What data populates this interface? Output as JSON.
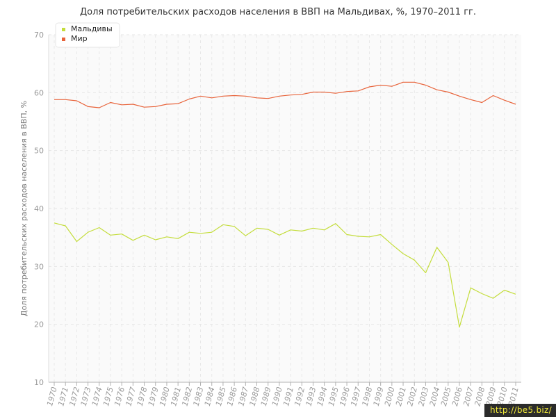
{
  "chart_data": {
    "type": "line",
    "title": "Доля потребительских расходов населения в ВВП на Мальдивах, %, 1970–2011 гг.",
    "xlabel": "",
    "ylabel": "Доля потребительских расходов населения в ВВП, %",
    "ylim": [
      10,
      70
    ],
    "yticks": [
      10,
      20,
      30,
      40,
      50,
      60,
      70
    ],
    "x": [
      1970,
      1971,
      1972,
      1973,
      1974,
      1975,
      1976,
      1977,
      1978,
      1979,
      1980,
      1981,
      1982,
      1983,
      1984,
      1985,
      1986,
      1987,
      1988,
      1989,
      1990,
      1991,
      1992,
      1993,
      1994,
      1995,
      1996,
      1997,
      1998,
      1999,
      2000,
      2001,
      2002,
      2003,
      2004,
      2005,
      2006,
      2007,
      2008,
      2009,
      2010,
      2011
    ],
    "grid": true,
    "legend_position": "top-left",
    "series": [
      {
        "name": "Мальдивы",
        "color": "#c4dd3c",
        "values": [
          37.5,
          37.0,
          34.3,
          35.9,
          36.7,
          35.4,
          35.6,
          34.5,
          35.4,
          34.6,
          35.1,
          34.8,
          35.9,
          35.7,
          35.9,
          37.2,
          36.9,
          35.3,
          36.6,
          36.4,
          35.4,
          36.3,
          36.1,
          36.6,
          36.3,
          37.4,
          35.5,
          35.2,
          35.1,
          35.5,
          33.8,
          32.2,
          31.1,
          28.9,
          33.3,
          30.7,
          19.5,
          26.3,
          25.3,
          24.5,
          25.9,
          25.2
        ]
      },
      {
        "name": "Мир",
        "color": "#e8633a",
        "values": [
          58.8,
          58.8,
          58.6,
          57.6,
          57.4,
          58.3,
          57.9,
          58.0,
          57.5,
          57.6,
          58.0,
          58.1,
          58.9,
          59.4,
          59.1,
          59.4,
          59.5,
          59.4,
          59.1,
          59.0,
          59.4,
          59.6,
          59.7,
          60.1,
          60.1,
          59.9,
          60.2,
          60.3,
          61.0,
          61.3,
          61.1,
          61.8,
          61.8,
          61.3,
          60.5,
          60.1,
          59.4,
          58.8,
          58.3,
          59.5,
          58.7,
          58.0
        ]
      }
    ]
  },
  "watermark": "http://be5.biz/"
}
